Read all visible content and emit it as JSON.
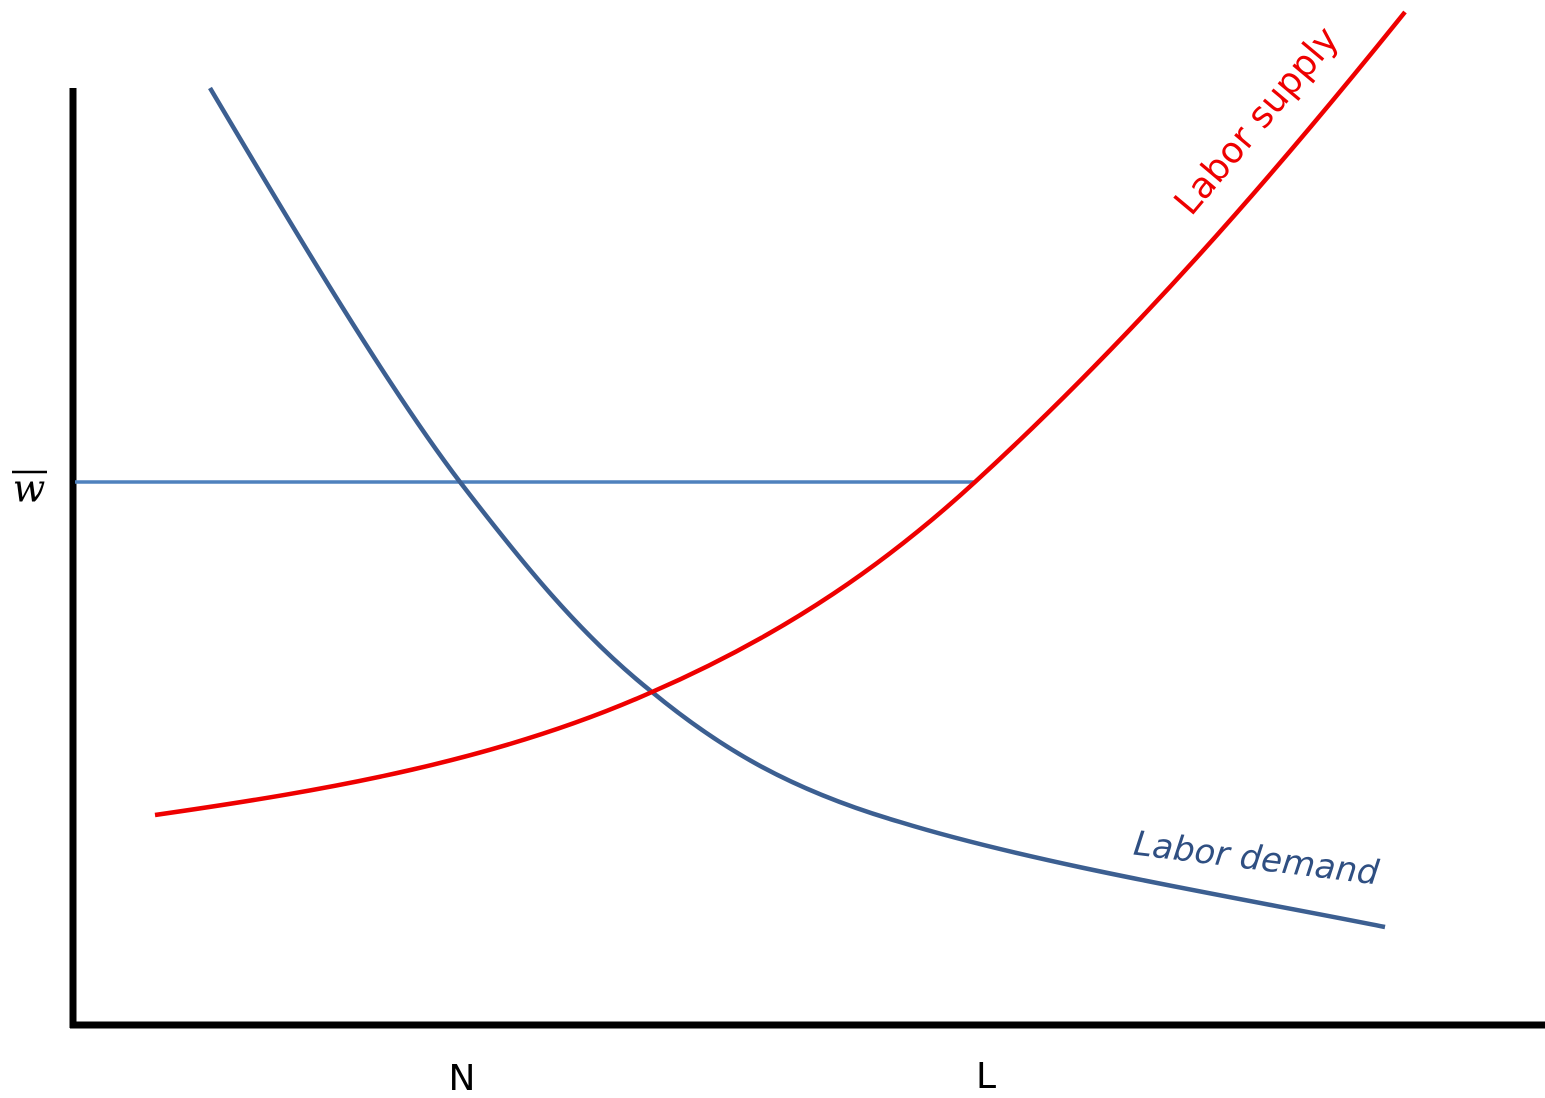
{
  "axis": {
    "y_label": "w",
    "x_labels": [
      "N",
      "L"
    ]
  },
  "curves": {
    "supply_label": "Labor supply",
    "demand_label": "Labor demand"
  }
}
